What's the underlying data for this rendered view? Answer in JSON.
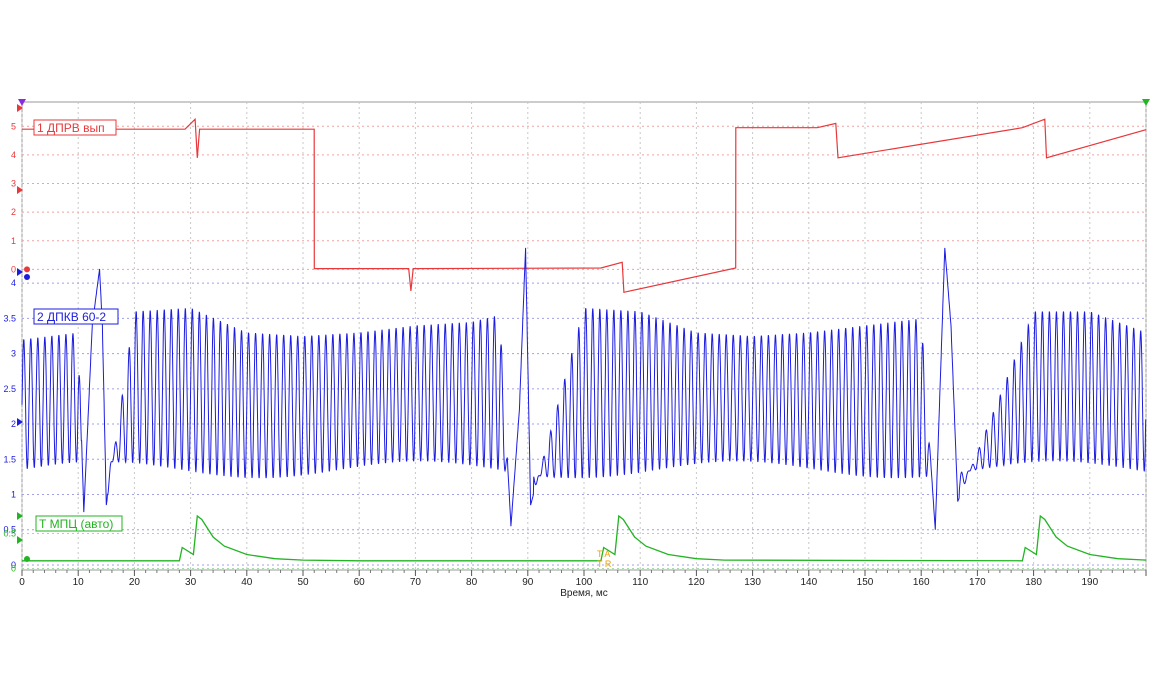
{
  "chart_data": {
    "type": "line",
    "xlabel": "Время, мс",
    "x_range": [
      0,
      200
    ],
    "x_ticks": [
      0,
      10,
      20,
      30,
      40,
      50,
      60,
      70,
      80,
      90,
      100,
      110,
      120,
      130,
      140,
      150,
      160,
      170,
      180,
      190
    ],
    "grid": true,
    "series": [
      {
        "name": "1 ДПРВ вып",
        "color": "#e8383b",
        "y_range": [
          -0.3,
          5.5
        ],
        "y_ticks": [
          0,
          1,
          2,
          3,
          4,
          5
        ],
        "x": [
          0,
          29,
          30.8,
          31.2,
          31.6,
          52,
          52.01,
          68.8,
          69.2,
          69.6,
          103,
          106.8,
          107.1,
          127,
          127.01,
          141.5,
          144.8,
          145.2,
          178,
          182,
          182.3,
          200
        ],
        "y": [
          4.9,
          4.9,
          5.25,
          3.9,
          4.9,
          4.9,
          0.03,
          0.03,
          -0.75,
          0.03,
          0.05,
          0.25,
          -0.8,
          0.05,
          4.95,
          4.95,
          5.1,
          3.9,
          4.95,
          5.25,
          3.9,
          4.88
        ]
      },
      {
        "name": "2 ДПКВ 60-2",
        "color": "#1c1ce0",
        "y_range": [
          -0.1,
          4.3
        ],
        "y_ticks": [
          0,
          0.5,
          1,
          1.5,
          2,
          2.5,
          3,
          3.5,
          4
        ],
        "signal": "crankshaft sensor 60-2, tooth period ~1.25 ms, amplitude ~1.4-3.65 V, gap at ~13, ~89, ~164 ms",
        "x": [
          0,
          10,
          11,
          12.5,
          13.8,
          14.3,
          15,
          20,
          30,
          40,
          50,
          60,
          70,
          80,
          85,
          87,
          88.5,
          89.6,
          90.5,
          100,
          110,
          120,
          130,
          140,
          150,
          160,
          162.5,
          164.2,
          165.3,
          166.5,
          180,
          190,
          200
        ],
        "y": [
          3.2,
          3.3,
          0.75,
          3.4,
          4.2,
          3.4,
          0.85,
          3.6,
          3.65,
          3.3,
          3.25,
          3.3,
          3.4,
          3.45,
          3.55,
          0.55,
          2.2,
          4.5,
          0.85,
          3.65,
          3.6,
          3.3,
          3.25,
          3.3,
          3.4,
          3.5,
          0.5,
          4.5,
          3.4,
          0.9,
          3.6,
          3.6,
          3.3
        ]
      },
      {
        "name": "Т МПЦ (авто)",
        "color": "#22b422",
        "y_range": [
          -0.05,
          0.95
        ],
        "y_ticks": [
          0,
          0.5
        ],
        "x": [
          0,
          28,
          28.5,
          30.5,
          31.2,
          32,
          34,
          36,
          40,
          45,
          50,
          60,
          103,
          103.5,
          105.5,
          106.2,
          107,
          109,
          111,
          115,
          120,
          125,
          178,
          178.5,
          180.5,
          181.2,
          182,
          184,
          186,
          190,
          195,
          200
        ],
        "y": [
          0.11,
          0.11,
          0.3,
          0.2,
          0.75,
          0.7,
          0.45,
          0.32,
          0.2,
          0.14,
          0.12,
          0.11,
          0.11,
          0.3,
          0.2,
          0.75,
          0.7,
          0.45,
          0.32,
          0.2,
          0.14,
          0.12,
          0.11,
          0.3,
          0.2,
          0.75,
          0.7,
          0.45,
          0.32,
          0.2,
          0.14,
          0.12
        ]
      }
    ],
    "trigger_marks": [
      "T A",
      "T R"
    ],
    "colors": {
      "ch1": "#e8383b",
      "ch1_grid": "#f0a3a3",
      "ch2": "#1c1ce0",
      "ch2_grid": "#a0a0ea",
      "ch3": "#22b422",
      "ch3_grid": "#a5dca5",
      "vgrid": "#c8c8c8",
      "frame": "#9a9a9a"
    }
  }
}
